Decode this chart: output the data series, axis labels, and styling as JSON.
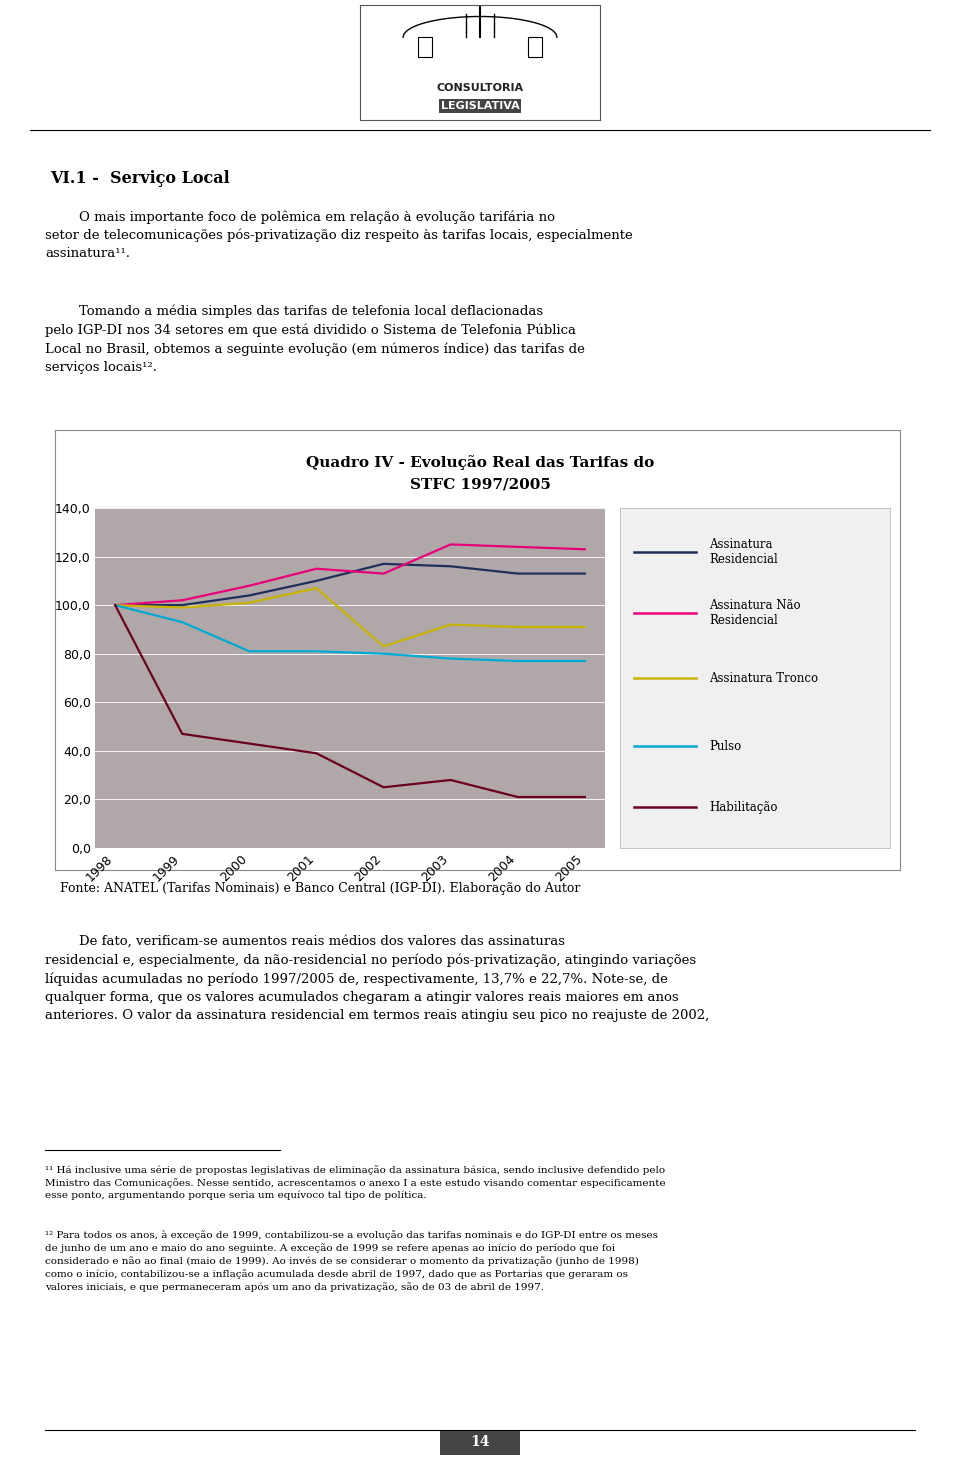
{
  "title_line1": "Quadro IV - Evolução Real das Tarifas do",
  "title_line2": "STFC 1997/2005",
  "years": [
    1998,
    1999,
    2000,
    2001,
    2002,
    2003,
    2004,
    2005
  ],
  "assinatura_residencial": [
    100.0,
    100.0,
    104.0,
    110.0,
    117.0,
    116.0,
    113.0,
    113.0
  ],
  "assinatura_nao_residencial": [
    100.0,
    102.0,
    108.0,
    115.0,
    113.0,
    125.0,
    124.0,
    123.0
  ],
  "assinatura_tronco": [
    100.0,
    99.0,
    101.0,
    107.0,
    83.0,
    92.0,
    91.0,
    91.0
  ],
  "pulso": [
    100.0,
    93.0,
    81.0,
    81.0,
    80.0,
    78.0,
    77.0,
    77.0
  ],
  "habilitacao": [
    100.0,
    47.0,
    43.0,
    39.0,
    25.0,
    28.0,
    21.0,
    21.0
  ],
  "color_residencial": "#1F2F5A",
  "color_nao_residencial": "#E8007A",
  "color_tronco": "#C8B400",
  "color_pulso": "#00A8D4",
  "color_habilitacao": "#6B0020",
  "plot_bg_color": "#B0A8A8",
  "fig_bg_color": "#FFFFFF",
  "legend_bg_color": "#F0F0F0",
  "yticks": [
    0.0,
    20.0,
    40.0,
    60.0,
    80.0,
    100.0,
    120.0,
    140.0
  ],
  "ylim_min": 0.0,
  "ylim_max": 140.0,
  "fonte_text": "Fonte: ANATEL (Tarifas Nominais) e Banco Central (IGP-DI). Elaboração do Autor",
  "label_residencial": "Assinatura\nResidencial",
  "label_nao_residencial": "Assinatura Não\nResidencial",
  "label_tronco": "Assinatura Tronco",
  "label_pulso": "Pulso",
  "label_habilitacao": "Habilitação",
  "heading": "VI.1 -  Serviço Local",
  "para1_indent": "        O mais importante foco de polêmica em relação à evolução tarifária no setor de telecomunicações pós-privatização diz respeito às tarifas locais, especialmente assinatura¹¹.",
  "para2_indent": "        Tomando a média simples das tarifas de telefonia local deflacionadas pelo IGP-DI nos 34 setores em que está dividido o Sistema de Telefonia Pública Local no Brasil, obtemos a seguinte evolução (em números índice) das tarifas de serviços locais¹².",
  "para3_indent": "        De fato, verificam-se aumentos reais médios dos valores das assinaturas residencial e, especialmente, da não-residencial no período pós-privatização, atingindo variações líquidas acumuladas no período 1997/2005 de, respectivamente, 13,7% e 22,7%. Note-se, de qualquer forma, que os valores acumulados chegaram a atingir valores reais maiores em anos anteriores. O valor da assinatura residencial em termos reais atingiu seu pico no reajuste de 2002,",
  "footnote11": "¹¹ Há inclusive uma série de propostas legislativas de eliminação da assinatura básica, sendo inclusive defendido pelo Ministro das Comunicações. Nesse sentido, acrescentamos o anexo I a este estudo visando comentar especificamente esse ponto, argumentando porque seria um equívoco tal tipo de política.",
  "footnote12": "¹² Para todos os anos, à exceção de 1999, contabilizou-se a evolução das tarifas nominais e do IGP-DI entre os meses de junho de um ano e maio do ano seguinte. A exceção de 1999 se refere apenas ao início do período que foi considerado e não ao final (maio de 1999). Ao invés de se considerar o momento da privatização (junho de 1998) como o início, contabilizou-se a inflação acumulada desde abril de 1997, dado que as Portarias que geraram os valores iniciais, e que permaneceram após um ano da privatização, são de 03 de abril de 1997.",
  "page_number": "14"
}
